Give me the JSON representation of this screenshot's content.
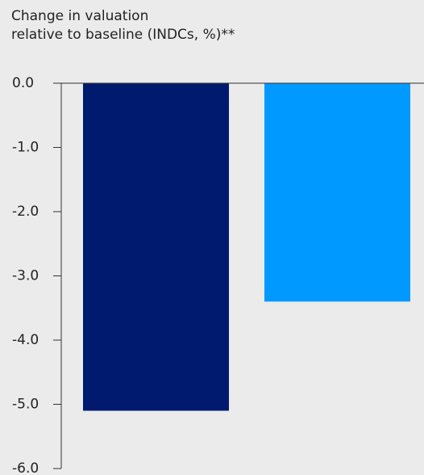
{
  "chart_data": {
    "type": "bar",
    "ylabel_lines": [
      "Change in valuation",
      "relative to baseline (INDCs, %)**"
    ],
    "xlabel": "",
    "categories": [
      "",
      ""
    ],
    "values": [
      -5.1,
      -3.4
    ],
    "colors": [
      "#001a70",
      "#0099ff"
    ],
    "ylim": [
      -6.0,
      0.0
    ],
    "yticks": [
      "0.0",
      "-1.0",
      "-2.0",
      "-3.0",
      "-4.0",
      "-5.0",
      "-6.0"
    ],
    "grid": false,
    "legend": "none"
  }
}
